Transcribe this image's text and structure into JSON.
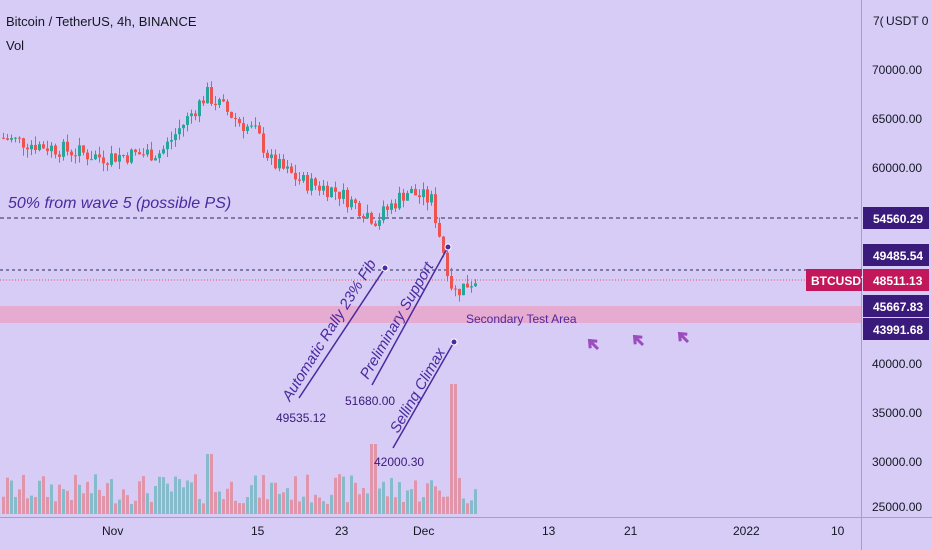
{
  "header": {
    "title": "Bitcoin / TetherUS, 4h, BINANCE",
    "volume_label": "Vol",
    "axis_currency": "USDT 0",
    "axis_currency_prefix": "7("
  },
  "chart_data": {
    "type": "candlestick",
    "symbol": "BTCUSDT",
    "interval": "4h",
    "exchange": "BINANCE",
    "price_axis": {
      "ylim": [
        24500,
        76000
      ],
      "ticks": [
        "70000.00",
        "65000.00",
        "60000.00",
        "40000.00",
        "35000.00",
        "30000.00",
        "25000.00"
      ]
    },
    "time_axis": {
      "ticks": [
        "Nov",
        "15",
        "23",
        "Dec",
        "13",
        "21",
        "2022",
        "10"
      ]
    },
    "price_labels": [
      {
        "value": "54560.29",
        "style": "box"
      },
      {
        "value": "49485.54",
        "style": "box"
      },
      {
        "value": "48511.13",
        "style": "current",
        "symbol": "BTCUSDT"
      },
      {
        "value": "45667.83",
        "style": "box"
      },
      {
        "value": "43991.68",
        "style": "box"
      }
    ],
    "horizontal_lines": [
      {
        "price": 54560.29,
        "style": "dashed"
      },
      {
        "price": 48511.13,
        "style": "dashed"
      },
      {
        "price": 48511.13,
        "style": "dotted",
        "color": "#ef5350"
      }
    ],
    "zones": [
      {
        "from": 43991.68,
        "to": 45667.83,
        "label": "Secondary Test Area",
        "color": "#f48fb1"
      }
    ],
    "annotations": [
      {
        "text": "50% from wave 5 (possible PS)"
      },
      {
        "text": "Automatic Rally 23% Fib",
        "value": "49535.12"
      },
      {
        "text": "Preliminary Support",
        "value": "51680.00"
      },
      {
        "text": "Selling Climax",
        "value": "42000.30"
      }
    ],
    "price_series": [
      {
        "date": "Oct 26",
        "close": 63000
      },
      {
        "date": "Nov 1",
        "close": 61000
      },
      {
        "date": "Nov 6",
        "close": 61500
      },
      {
        "date": "Nov 10",
        "close": 67500
      },
      {
        "date": "Nov 13",
        "close": 64500
      },
      {
        "date": "Nov 15",
        "close": 63500
      },
      {
        "date": "Nov 17",
        "close": 60500
      },
      {
        "date": "Nov 20",
        "close": 58500
      },
      {
        "date": "Nov 23",
        "close": 57500
      },
      {
        "date": "Nov 27",
        "close": 54500
      },
      {
        "date": "Nov 30",
        "close": 57500
      },
      {
        "date": "Dec 3",
        "close": 56500
      },
      {
        "date": "Dec 4",
        "close": 47000
      },
      {
        "date": "Dec 7",
        "close": 48511
      }
    ],
    "volume_note": "Volume bars at bottom with spike on Dec 4"
  },
  "colors": {
    "background": "#d6ccf6",
    "bull": "#26a69a",
    "bear": "#ef5350",
    "zone": "#f48fb1",
    "annotation": "#4a2a9e",
    "label_box": "#3a1a7a",
    "current_price": "#c2185b"
  }
}
